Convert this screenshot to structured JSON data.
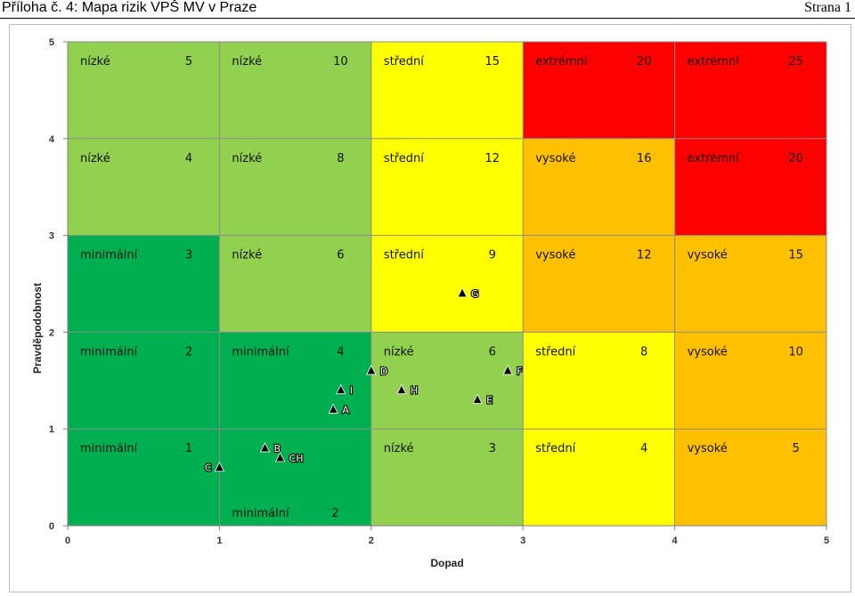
{
  "header": {
    "left": "Příloha č. 4: Mapa rizik VPŠ MV v Praze",
    "right": "Strana 1"
  },
  "chart_data": {
    "type": "scatter",
    "title": "",
    "xlabel": "Dopad",
    "ylabel": "Pravděpodobnost",
    "xlim": [
      0,
      5
    ],
    "ylim": [
      0,
      5
    ],
    "xticks": [
      "0",
      "1",
      "2",
      "3",
      "4",
      "5"
    ],
    "yticks": [
      "0",
      "1",
      "2",
      "3",
      "4",
      "5"
    ],
    "cells": [
      {
        "col": 1,
        "row": 5,
        "label": "nízké",
        "score": "5",
        "color": "#92d050"
      },
      {
        "col": 2,
        "row": 5,
        "label": "nízké",
        "score": "10",
        "color": "#92d050"
      },
      {
        "col": 3,
        "row": 5,
        "label": "střední",
        "score": "15",
        "color": "#ffff00"
      },
      {
        "col": 4,
        "row": 5,
        "label": "extrémní",
        "score": "20",
        "color": "#ff0000"
      },
      {
        "col": 5,
        "row": 5,
        "label": "extrémní",
        "score": "25",
        "color": "#ff0000"
      },
      {
        "col": 1,
        "row": 4,
        "label": "nízké",
        "score": "4",
        "color": "#92d050"
      },
      {
        "col": 2,
        "row": 4,
        "label": "nízké",
        "score": "8",
        "color": "#92d050"
      },
      {
        "col": 3,
        "row": 4,
        "label": "střední",
        "score": "12",
        "color": "#ffff00"
      },
      {
        "col": 4,
        "row": 4,
        "label": "vysoké",
        "score": "16",
        "color": "#ffc000"
      },
      {
        "col": 5,
        "row": 4,
        "label": "extrémní",
        "score": "20",
        "color": "#ff0000"
      },
      {
        "col": 1,
        "row": 3,
        "label": "minimální",
        "score": "3",
        "color": "#00b050"
      },
      {
        "col": 2,
        "row": 3,
        "label": "nízké",
        "score": "6",
        "color": "#92d050"
      },
      {
        "col": 3,
        "row": 3,
        "label": "střední",
        "score": "9",
        "color": "#ffff00"
      },
      {
        "col": 4,
        "row": 3,
        "label": "vysoké",
        "score": "12",
        "color": "#ffc000"
      },
      {
        "col": 5,
        "row": 3,
        "label": "vysoké",
        "score": "15",
        "color": "#ffc000"
      },
      {
        "col": 1,
        "row": 2,
        "label": "minimální",
        "score": "2",
        "color": "#00b050"
      },
      {
        "col": 2,
        "row": 2,
        "label": "minimální",
        "score": "4",
        "color": "#00b050"
      },
      {
        "col": 3,
        "row": 2,
        "label": "nízké",
        "score": "6",
        "color": "#92d050"
      },
      {
        "col": 4,
        "row": 2,
        "label": "střední",
        "score": "8",
        "color": "#ffff00"
      },
      {
        "col": 5,
        "row": 2,
        "label": "vysoké",
        "score": "10",
        "color": "#ffc000"
      },
      {
        "col": 1,
        "row": 1,
        "label": "minimální",
        "score": "1",
        "color": "#00b050"
      },
      {
        "col": 2,
        "row": 1,
        "label": "minimální",
        "score": "2",
        "color": "#00b050",
        "label_pos": "bottom"
      },
      {
        "col": 3,
        "row": 1,
        "label": "nízké",
        "score": "3",
        "color": "#92d050"
      },
      {
        "col": 4,
        "row": 1,
        "label": "střední",
        "score": "4",
        "color": "#ffff00"
      },
      {
        "col": 5,
        "row": 1,
        "label": "vysoké",
        "score": "5",
        "color": "#ffc000"
      }
    ],
    "points": [
      {
        "label": "G",
        "x": 2.6,
        "y": 2.4
      },
      {
        "label": "D",
        "x": 2.0,
        "y": 1.6
      },
      {
        "label": "F",
        "x": 2.9,
        "y": 1.6
      },
      {
        "label": "I",
        "x": 1.8,
        "y": 1.4
      },
      {
        "label": "H",
        "x": 2.2,
        "y": 1.4
      },
      {
        "label": "E",
        "x": 2.7,
        "y": 1.3
      },
      {
        "label": "A",
        "x": 1.75,
        "y": 1.2
      },
      {
        "label": "B",
        "x": 1.3,
        "y": 0.8
      },
      {
        "label": "CH",
        "x": 1.4,
        "y": 0.7
      },
      {
        "label": "C",
        "x": 1.0,
        "y": 0.6
      }
    ]
  }
}
